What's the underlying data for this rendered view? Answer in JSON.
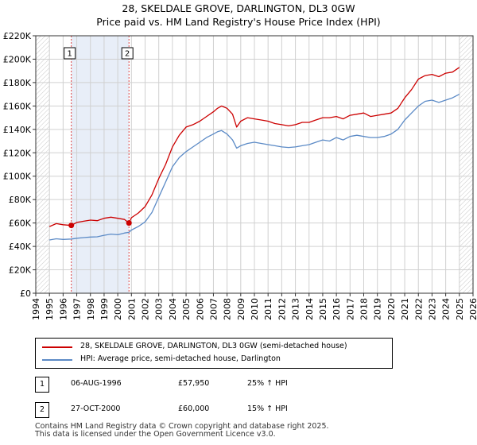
{
  "title_line1": "28, SKELDALE GROVE, DARLINGTON, DL3 0GW",
  "title_line2": "Price paid vs. HM Land Registry's House Price Index (HPI)",
  "colors": {
    "property": "#cc0000",
    "hpi": "#5b8ac6",
    "shade": "#e8eef8",
    "sale_line": "#dd4444",
    "grid": "#d0d0d0"
  },
  "legend": {
    "property_label": "28, SKELDALE GROVE, DARLINGTON, DL3 0GW (semi-detached house)",
    "hpi_label": "HPI: Average price, semi-detached house, Darlington"
  },
  "sales": [
    {
      "num": "1",
      "date": "06-AUG-1996",
      "price": "£57,950",
      "hpi": "25% ↑ HPI"
    },
    {
      "num": "2",
      "date": "27-OCT-2000",
      "price": "£60,000",
      "hpi": "15% ↑ HPI"
    }
  ],
  "footer_line1": "Contains HM Land Registry data © Crown copyright and database right 2025.",
  "footer_line2": "This data is licensed under the Open Government Licence v3.0.",
  "chart_data": {
    "type": "line",
    "xlim": [
      1994,
      2026
    ],
    "ylim": [
      0,
      220000
    ],
    "x_ticks": [
      "1994",
      "1995",
      "1996",
      "1997",
      "1998",
      "1999",
      "2000",
      "2001",
      "2002",
      "2003",
      "2004",
      "2005",
      "2006",
      "2007",
      "2008",
      "2009",
      "2010",
      "2011",
      "2012",
      "2013",
      "2014",
      "2015",
      "2016",
      "2017",
      "2018",
      "2019",
      "2020",
      "2021",
      "2022",
      "2023",
      "2024",
      "2025",
      "2026"
    ],
    "y_ticks": [
      "£0",
      "£20K",
      "£40K",
      "£60K",
      "£80K",
      "£100K",
      "£120K",
      "£140K",
      "£160K",
      "£180K",
      "£200K",
      "£220K"
    ],
    "grid": true,
    "shaded_range": [
      1996.6,
      2000.82
    ],
    "hatched_ranges": [
      [
        1994,
        1995
      ],
      [
        2025.0,
        2026
      ]
    ],
    "markers": [
      {
        "label": "1",
        "x": 1996.6,
        "y": 57950
      },
      {
        "label": "2",
        "x": 2000.82,
        "y": 60000
      }
    ],
    "series": [
      {
        "name": "28, SKELDALE GROVE, DARLINGTON, DL3 0GW (semi-detached house)",
        "x": [
          1995.0,
          1995.5,
          1996.0,
          1996.6,
          1997.0,
          1997.5,
          1998.0,
          1998.5,
          1999.0,
          1999.5,
          2000.0,
          2000.5,
          2000.82,
          2001.0,
          2001.5,
          2002.0,
          2002.5,
          2003.0,
          2003.5,
          2004.0,
          2004.5,
          2005.0,
          2005.5,
          2006.0,
          2006.5,
          2007.0,
          2007.3,
          2007.6,
          2008.0,
          2008.4,
          2008.7,
          2009.0,
          2009.5,
          2010.0,
          2010.5,
          2011.0,
          2011.5,
          2012.0,
          2012.5,
          2013.0,
          2013.5,
          2014.0,
          2014.5,
          2015.0,
          2015.5,
          2016.0,
          2016.5,
          2017.0,
          2017.5,
          2018.0,
          2018.5,
          2019.0,
          2019.5,
          2020.0,
          2020.5,
          2021.0,
          2021.5,
          2022.0,
          2022.5,
          2023.0,
          2023.5,
          2024.0,
          2024.5,
          2025.0
        ],
        "y": [
          57000,
          59500,
          58500,
          57950,
          60500,
          61500,
          62500,
          62000,
          64000,
          65000,
          64000,
          63000,
          60000,
          64500,
          68500,
          74000,
          84000,
          98000,
          110000,
          125000,
          135000,
          142000,
          144000,
          147000,
          151000,
          155000,
          158000,
          160000,
          158000,
          153000,
          142000,
          147000,
          150000,
          149000,
          148000,
          147000,
          145000,
          144000,
          143000,
          144000,
          146000,
          146000,
          148000,
          150000,
          150000,
          151000,
          149000,
          152000,
          153000,
          154000,
          151000,
          152000,
          153000,
          154000,
          158000,
          167000,
          174000,
          183000,
          186000,
          187000,
          185000,
          188000,
          189000,
          193000
        ]
      },
      {
        "name": "HPI: Average price, semi-detached house, Darlington",
        "x": [
          1995.0,
          1995.5,
          1996.0,
          1996.6,
          1997.0,
          1997.5,
          1998.0,
          1998.5,
          1999.0,
          1999.5,
          2000.0,
          2000.5,
          2000.82,
          2001.0,
          2001.5,
          2002.0,
          2002.5,
          2003.0,
          2003.5,
          2004.0,
          2004.5,
          2005.0,
          2005.5,
          2006.0,
          2006.5,
          2007.0,
          2007.3,
          2007.6,
          2008.0,
          2008.4,
          2008.7,
          2009.0,
          2009.5,
          2010.0,
          2010.5,
          2011.0,
          2011.5,
          2012.0,
          2012.5,
          2013.0,
          2013.5,
          2014.0,
          2014.5,
          2015.0,
          2015.5,
          2016.0,
          2016.5,
          2017.0,
          2017.5,
          2018.0,
          2018.5,
          2019.0,
          2019.5,
          2020.0,
          2020.5,
          2021.0,
          2021.5,
          2022.0,
          2022.5,
          2023.0,
          2023.5,
          2024.0,
          2024.5,
          2025.0
        ],
        "y": [
          45500,
          46500,
          46000,
          46300,
          47000,
          47500,
          48000,
          48200,
          49500,
          50500,
          50000,
          51500,
          52000,
          54000,
          57000,
          61000,
          69000,
          82000,
          95000,
          108000,
          116000,
          121000,
          125000,
          129000,
          133000,
          136000,
          138000,
          139000,
          136000,
          131000,
          124000,
          126000,
          128000,
          129000,
          128000,
          127000,
          126000,
          125000,
          124500,
          125000,
          126000,
          127000,
          129000,
          131000,
          130000,
          133000,
          131000,
          134000,
          135000,
          134000,
          133000,
          133000,
          134000,
          136000,
          140000,
          148000,
          154000,
          160000,
          164000,
          165000,
          163000,
          165000,
          167000,
          170000
        ]
      }
    ]
  }
}
